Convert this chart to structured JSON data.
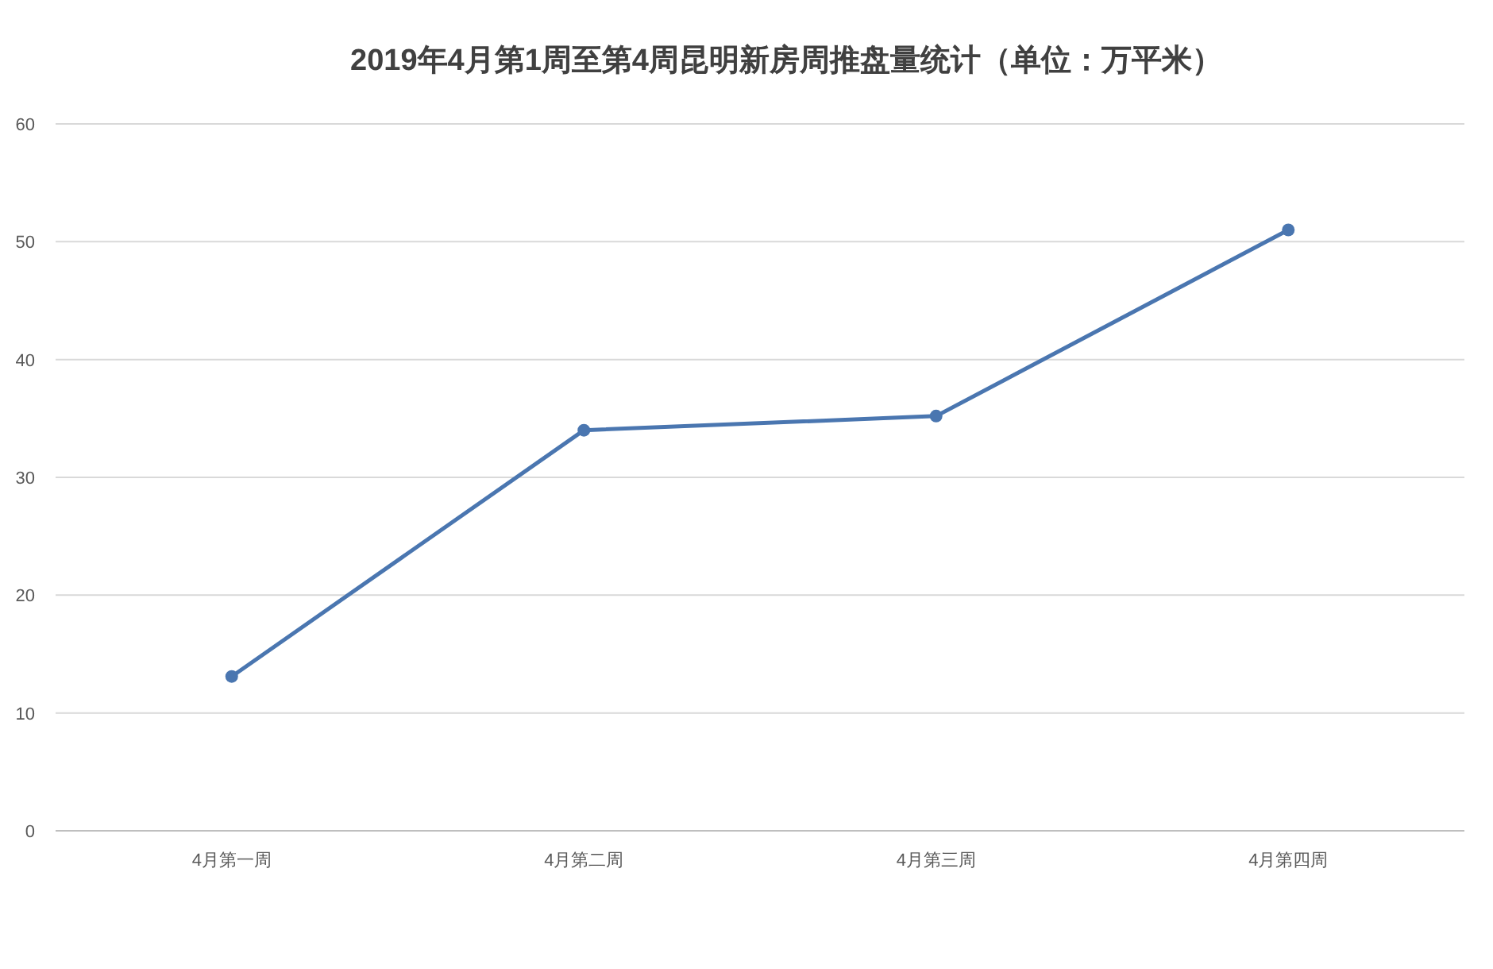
{
  "chart_data": {
    "type": "line",
    "title": "2019年4月第1周至第4周昆明新房周推盘量统计（单位：万平米）",
    "categories": [
      "4月第一周",
      "4月第二周",
      "4月第三周",
      "4月第四周"
    ],
    "series": [
      {
        "color": "#4a76b0",
        "values": [
          13.1,
          34.0,
          35.2,
          51.0
        ]
      }
    ],
    "ylim": [
      0,
      60
    ],
    "yticks": [
      0,
      10,
      20,
      30,
      40,
      50,
      60
    ],
    "grid": "y",
    "marker": "circle",
    "line_style": "solid"
  }
}
